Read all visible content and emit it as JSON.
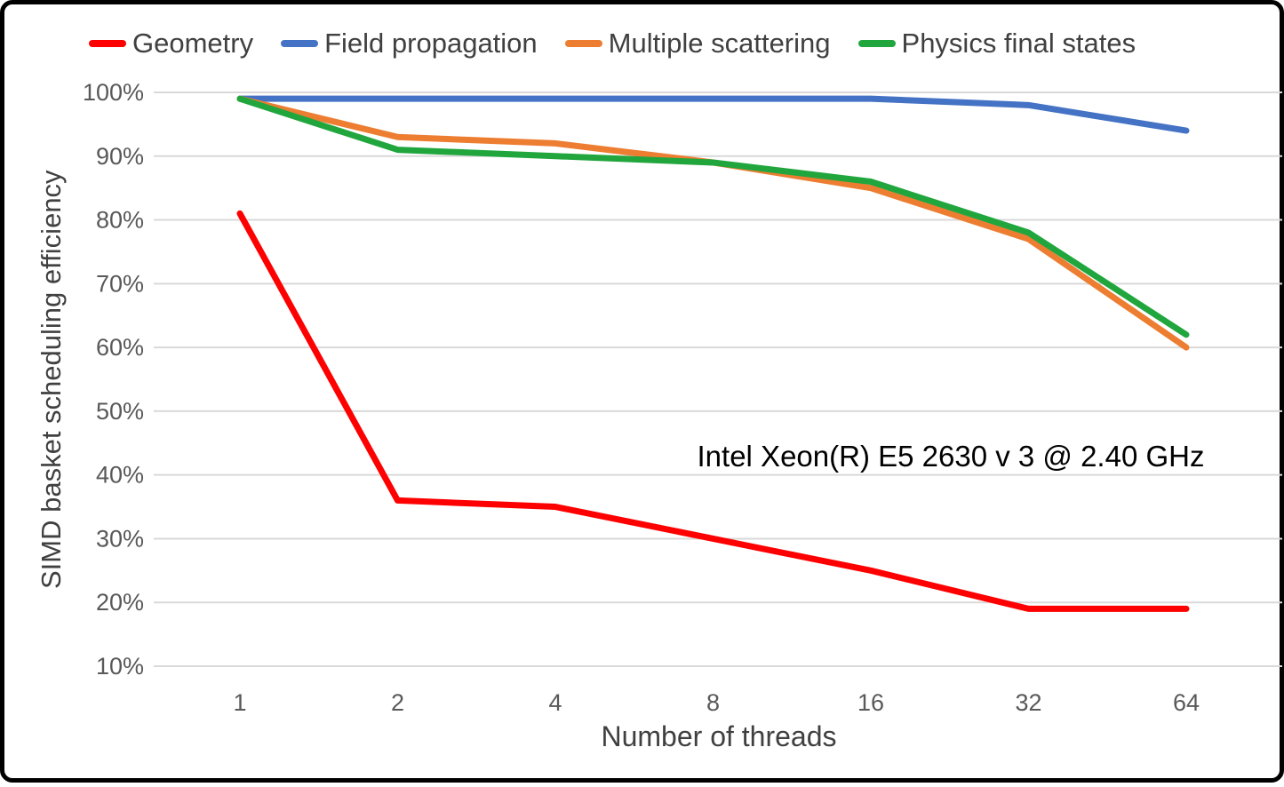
{
  "chart_data": {
    "type": "line",
    "title": "",
    "xlabel": "Number of threads",
    "ylabel": "SIMD basket scheduling efficiency",
    "annotation": "Intel Xeon(R) E5 2630 v 3 @ 2.40 GHz",
    "unit": "%",
    "categories": [
      "1",
      "2",
      "4",
      "8",
      "16",
      "32",
      "64"
    ],
    "y_ticks": [
      "100%",
      "90%",
      "80%",
      "70%",
      "60%",
      "50%",
      "40%",
      "30%",
      "20%",
      "10%"
    ],
    "ylim": [
      10,
      100
    ],
    "grid": "horizontal-only",
    "legend_position": "top",
    "series": [
      {
        "name": "Geometry",
        "color": "#fe0000",
        "values": [
          81,
          36,
          35,
          30,
          25,
          19,
          19
        ]
      },
      {
        "name": "Field propagation",
        "color": "#4472c4",
        "values": [
          99,
          99,
          99,
          99,
          99,
          98,
          94
        ]
      },
      {
        "name": "Multiple scattering",
        "color": "#ed7d31",
        "values": [
          99,
          93,
          92,
          89,
          85,
          77,
          60
        ]
      },
      {
        "name": "Physics final states",
        "color": "#21a63e",
        "values": [
          99,
          91,
          90,
          89,
          86,
          78,
          62
        ]
      }
    ]
  }
}
